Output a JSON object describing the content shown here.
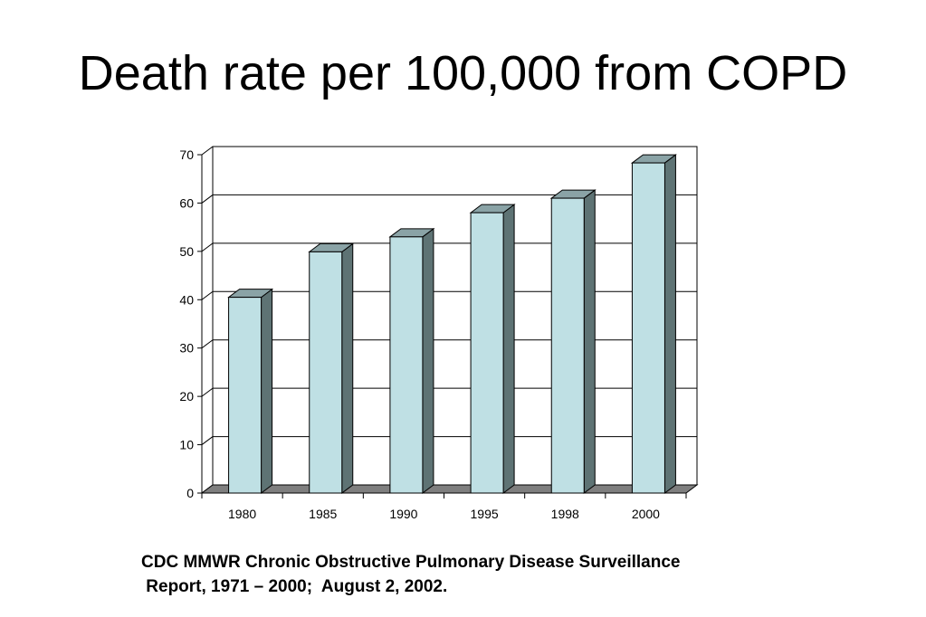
{
  "slide": {
    "title": "Death rate per 100,000 from COPD",
    "citation_line1": "CDC MMWR Chronic Obstructive Pulmonary Disease Surveillance",
    "citation_line2": " Report, 1971 – 2000;  August 2, 2002."
  },
  "colors": {
    "bar_front": "#bfe0e4",
    "bar_side": "#5e7374",
    "bar_top": "#8aa3a6",
    "floor": "#7f7f7f",
    "gridline": "#000000"
  },
  "chart_data": {
    "type": "bar",
    "title": "",
    "xlabel": "",
    "ylabel": "",
    "categories": [
      "1980",
      "1985",
      "1990",
      "1995",
      "1998",
      "2000"
    ],
    "values": [
      40.5,
      49.9,
      53.0,
      58.0,
      61.0,
      68.3
    ],
    "ylim": [
      0,
      70
    ],
    "yticks": [
      0,
      10,
      20,
      30,
      40,
      50,
      60,
      70
    ],
    "grid": true,
    "style": "3d"
  }
}
